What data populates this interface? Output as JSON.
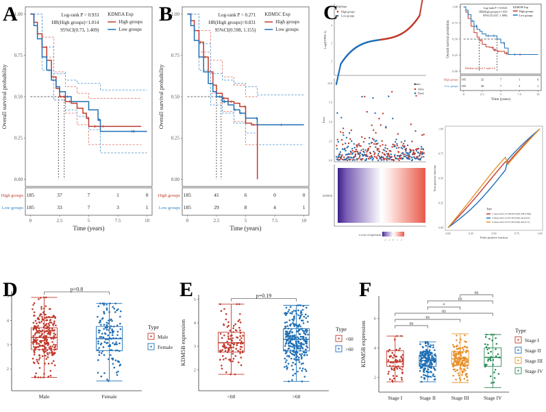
{
  "chart_data": [
    {
      "id": "A",
      "type": "line",
      "subtype": "kaplan-meier",
      "legend_title": "KDM5A Exp",
      "legend": [
        "High groups",
        "Low groups"
      ],
      "stats": [
        "Log-rank P = 0.933",
        "HR(High groups)=1.014",
        "95%CI(0.73, 1.409)"
      ],
      "xlabel": "Time (years)",
      "ylabel": "Overall survival probability",
      "xlim": [
        0,
        10
      ],
      "ylim": [
        0,
        1
      ],
      "xticks": [
        "0",
        "2.5",
        "5",
        "7.5",
        "10"
      ],
      "yticks": [
        "0.00",
        "0.25",
        "0.50",
        "0.75",
        "1.00"
      ],
      "colors": {
        "high": "#c0392b",
        "low": "#1f6fb5"
      },
      "series": [
        {
          "name": "High groups",
          "x": [
            0,
            0.3,
            0.6,
            1,
            1.4,
            1.8,
            2.2,
            2.5,
            3,
            3.5,
            4,
            4.5,
            4.8,
            5,
            6,
            7,
            8,
            9.5
          ],
          "y": [
            1,
            0.95,
            0.88,
            0.8,
            0.72,
            0.62,
            0.55,
            0.5,
            0.47,
            0.46,
            0.43,
            0.4,
            0.37,
            0.32,
            0.32,
            0.32,
            0.32,
            0.32
          ]
        },
        {
          "name": "Low groups",
          "x": [
            0,
            0.3,
            0.6,
            1,
            1.4,
            1.8,
            2.2,
            2.5,
            3,
            3.5,
            4,
            5,
            5.8,
            6,
            7,
            8,
            9,
            10
          ],
          "y": [
            1,
            0.93,
            0.85,
            0.74,
            0.66,
            0.6,
            0.56,
            0.53,
            0.5,
            0.47,
            0.47,
            0.42,
            0.36,
            0.29,
            0.29,
            0.29,
            0.29,
            0.29
          ]
        }
      ],
      "ci": [
        {
          "name": "High upper",
          "x": [
            0,
            1,
            2,
            3,
            4,
            5,
            6,
            9.5
          ],
          "y": [
            1,
            0.86,
            0.65,
            0.56,
            0.52,
            0.49,
            0.49,
            0.49
          ]
        },
        {
          "name": "High lower",
          "x": [
            0,
            1,
            2,
            3,
            4,
            5,
            6,
            9.5
          ],
          "y": [
            1,
            0.74,
            0.48,
            0.4,
            0.33,
            0.21,
            0.21,
            0.21
          ]
        },
        {
          "name": "Low upper",
          "x": [
            0,
            1,
            2,
            3,
            4,
            5,
            6,
            10
          ],
          "y": [
            1,
            0.8,
            0.64,
            0.6,
            0.58,
            0.58,
            0.54,
            0.54
          ]
        },
        {
          "name": "Low lower",
          "x": [
            0,
            1,
            2,
            3,
            4,
            5,
            6,
            10
          ],
          "y": [
            1,
            0.66,
            0.48,
            0.42,
            0.38,
            0.3,
            0.16,
            0.16
          ]
        }
      ],
      "median_lines": [
        2.4,
        2.9
      ],
      "risk_table": {
        "rows": [
          "High groups",
          "Low groups"
        ],
        "values": [
          [
            185,
            37,
            7,
            1,
            0
          ],
          [
            185,
            33,
            7,
            3,
            1
          ]
        ]
      }
    },
    {
      "id": "B",
      "type": "line",
      "subtype": "kaplan-meier",
      "legend_title": "KDM5C Exp",
      "legend": [
        "High groups",
        "Low groups"
      ],
      "stats": [
        "Log-rank P = 0.271",
        "HR(High groups)=0.831",
        "95%CI(0.598, 1.155)"
      ],
      "xlabel": "Time (years)",
      "ylabel": "Overall survival probability",
      "xlim": [
        0,
        10
      ],
      "ylim": [
        0,
        1
      ],
      "xticks": [
        "0",
        "2.5",
        "5",
        "7.5",
        "10"
      ],
      "yticks": [
        "0.00",
        "0.25",
        "0.50",
        "0.75",
        "1.00"
      ],
      "colors": {
        "high": "#c0392b",
        "low": "#1f6fb5"
      },
      "series": [
        {
          "name": "High groups",
          "x": [
            0,
            0.3,
            0.6,
            1,
            1.4,
            1.8,
            2.2,
            2.5,
            3,
            3.5,
            4,
            4.5,
            5,
            5.5,
            6,
            6.01
          ],
          "y": [
            1,
            0.96,
            0.9,
            0.83,
            0.74,
            0.65,
            0.57,
            0.52,
            0.49,
            0.47,
            0.46,
            0.44,
            0.34,
            0.33,
            0.33,
            0
          ]
        },
        {
          "name": "Low groups",
          "x": [
            0,
            0.3,
            0.6,
            1,
            1.4,
            1.8,
            2.2,
            2.5,
            3,
            3.5,
            4,
            4.5,
            5,
            6,
            7,
            8,
            9,
            10
          ],
          "y": [
            1,
            0.93,
            0.84,
            0.74,
            0.65,
            0.58,
            0.53,
            0.5,
            0.47,
            0.45,
            0.42,
            0.4,
            0.37,
            0.33,
            0.33,
            0.33,
            0.33,
            0.33
          ]
        }
      ],
      "ci": [
        {
          "name": "High upper",
          "x": [
            0,
            1,
            2,
            3,
            4,
            5,
            6
          ],
          "y": [
            1,
            0.9,
            0.72,
            0.62,
            0.57,
            0.5,
            0.5
          ]
        },
        {
          "name": "High lower",
          "x": [
            0,
            1,
            2,
            3,
            4,
            5,
            6
          ],
          "y": [
            1,
            0.77,
            0.52,
            0.41,
            0.35,
            0.21,
            0.21
          ]
        },
        {
          "name": "Low upper",
          "x": [
            0,
            1,
            2,
            3,
            4,
            5,
            6,
            10
          ],
          "y": [
            1,
            0.82,
            0.64,
            0.6,
            0.58,
            0.56,
            0.51,
            0.51
          ]
        },
        {
          "name": "Low lower",
          "x": [
            0,
            1,
            2,
            3,
            4,
            5,
            6,
            10
          ],
          "y": [
            1,
            0.66,
            0.45,
            0.4,
            0.34,
            0.28,
            0.21,
            0.21
          ]
        }
      ],
      "median_lines": [
        2.5,
        2.9
      ],
      "risk_table": {
        "rows": [
          "High groups",
          "Low groups"
        ],
        "values": [
          [
            185,
            41,
            6,
            0,
            0
          ],
          [
            185,
            29,
            8,
            4,
            1
          ]
        ]
      }
    },
    {
      "id": "C-risk",
      "type": "scatter",
      "legend_title": "RiskType",
      "legend": [
        "High groups",
        "Low groups"
      ],
      "ylabel": "Log2(TPM+1)",
      "yticks": [
        "2",
        "3",
        "4",
        "5"
      ],
      "ylim": [
        1.2,
        5.2
      ],
      "description": "Sorted KDM5B expression per patient; lower half Low groups (blue), upper half High groups (red)",
      "n_points": 370,
      "split_value": 3.2
    },
    {
      "id": "C-status",
      "type": "scatter",
      "legend_title": "Status",
      "legend": [
        "Alive",
        "Dead"
      ],
      "ylabel": "Time",
      "yticks": [
        "0.0",
        "2.5",
        "5.0",
        "7.5",
        "10.0"
      ],
      "ylim": [
        0,
        10.5
      ]
    },
    {
      "id": "C-heatmap",
      "type": "heatmap",
      "row_label": "KDM5B",
      "legend_title": "z-score of expression",
      "legend_ticks": [
        "-2",
        "-1",
        "0",
        "1",
        "2"
      ],
      "color_low": "#3b1e8c",
      "color_mid": "#ffffff",
      "color_high": "#e8594a"
    },
    {
      "id": "C-km",
      "type": "line",
      "subtype": "kaplan-meier",
      "legend_title": "KDM5B Exp",
      "legend": [
        "High groups",
        "Low groups"
      ],
      "stats": [
        "Log-rank P = 0.0343",
        "HR(High groups)=1.429",
        "95%CI(1.027, 1.989)"
      ],
      "annotation": "Median time:2.1 and 4.5",
      "xlabel": "Time (years)",
      "ylabel": "Overall survival probability",
      "xlim": [
        0,
        10
      ],
      "ylim": [
        0,
        1
      ],
      "xticks": [
        "0",
        "2.5",
        "5",
        "7.5",
        "10"
      ],
      "yticks": [
        "0.00",
        "0.25",
        "0.50",
        "0.75",
        "1.00"
      ],
      "series": [
        {
          "name": "High groups",
          "x": [
            0,
            0.3,
            0.6,
            1,
            1.4,
            1.8,
            2.1,
            2.5,
            3,
            3.5,
            4,
            4.5,
            5,
            5.5,
            6,
            10
          ],
          "y": [
            1,
            0.92,
            0.82,
            0.7,
            0.6,
            0.53,
            0.48,
            0.42,
            0.38,
            0.37,
            0.33,
            0.31,
            0.31,
            0.28,
            0.26,
            0.26
          ]
        },
        {
          "name": "Low groups",
          "x": [
            0,
            0.3,
            0.6,
            1,
            1.4,
            1.8,
            2.2,
            2.5,
            3,
            3.5,
            4,
            4.5,
            5,
            5.5,
            6,
            10
          ],
          "y": [
            1,
            0.95,
            0.88,
            0.78,
            0.7,
            0.65,
            0.62,
            0.58,
            0.55,
            0.55,
            0.55,
            0.5,
            0.44,
            0.36,
            0.26,
            0.26
          ]
        }
      ],
      "median_lines": [
        2.1,
        4.5
      ],
      "risk_table": {
        "rows": [
          "High groups",
          "Low groups"
        ],
        "values": [
          [
            185,
            32,
            7,
            1,
            0
          ],
          [
            185,
            38,
            7,
            3,
            1
          ]
        ]
      }
    },
    {
      "id": "C-roc",
      "type": "line",
      "subtype": "roc",
      "xlabel": "False positive fraction",
      "ylabel": "True positive fraction",
      "xticks": [
        "0.00",
        "0.25",
        "0.50",
        "0.75",
        "1.00"
      ],
      "yticks": [
        "0.00",
        "0.25",
        "0.50",
        "0.75",
        "1.00"
      ],
      "xlim": [
        0,
        1
      ],
      "ylim": [
        0,
        1
      ],
      "legend_title": "Type",
      "series": [
        {
          "name": "1-Years,AUC=0.538,95%CI(0.478-0.599)",
          "color": "#c0392b",
          "bend": 0.03
        },
        {
          "name": "3-Years,AUC=0.527,95%CI(0.44-0.615)",
          "color": "#1f6fb5",
          "bend": -0.06
        },
        {
          "name": "5-Years,AUC=0.577,95%CI(0.445-0.71)",
          "color": "#e8912d",
          "bend": 0.08
        }
      ]
    },
    {
      "id": "D",
      "type": "box",
      "categories": [
        "Male",
        "Female"
      ],
      "ylabel": "KDM5B expression",
      "yticks": [
        "2",
        "3",
        "4",
        "5"
      ],
      "ylim": [
        1.1,
        5.2
      ],
      "legend_title": "Type",
      "legend": [
        "Male",
        "Female"
      ],
      "colors": [
        "#c0392b",
        "#1f6fb5"
      ],
      "boxes": [
        {
          "min": 1.65,
          "q1": 2.8,
          "median": 3.3,
          "q3": 3.7,
          "max": 4.95,
          "n": 260
        },
        {
          "min": 1.5,
          "q1": 2.75,
          "median": 3.25,
          "q3": 3.75,
          "max": 4.7,
          "n": 130
        }
      ],
      "comparisons": [
        {
          "from": 0,
          "to": 1,
          "label": "p=0.8"
        }
      ]
    },
    {
      "id": "E",
      "type": "box",
      "categories": [
        "<60",
        ">60"
      ],
      "ylabel": "KDM5B expression",
      "yticks": [
        "2",
        "3",
        "4",
        "5"
      ],
      "ylim": [
        1.1,
        5.2
      ],
      "legend_title": "Type",
      "legend": [
        "<60",
        ">60"
      ],
      "colors": [
        "#c0392b",
        "#1f6fb5"
      ],
      "boxes": [
        {
          "min": 1.8,
          "q1": 2.75,
          "median": 3.15,
          "q3": 3.6,
          "max": 4.8,
          "n": 110
        },
        {
          "min": 1.5,
          "q1": 2.8,
          "median": 3.3,
          "q3": 3.75,
          "max": 4.75,
          "n": 280
        }
      ],
      "comparisons": [
        {
          "from": 0,
          "to": 1,
          "label": "p=0.19"
        }
      ]
    },
    {
      "id": "F",
      "type": "box",
      "categories": [
        "Stage I",
        "Stage II",
        "Stage III",
        "Stage IV"
      ],
      "ylabel": "KDM5B expression",
      "yticks": [
        "2",
        "4",
        "6"
      ],
      "ylim": [
        1,
        7.5
      ],
      "legend_title": "Type",
      "legend": [
        "Stage I",
        "Stage II",
        "Stage III",
        "Stage IV"
      ],
      "colors": [
        "#c0392b",
        "#1f6fb5",
        "#e8912d",
        "#2e8b57"
      ],
      "boxes": [
        {
          "min": 1.7,
          "q1": 2.75,
          "median": 3.05,
          "q3": 3.8,
          "max": 4.8,
          "n": 60
        },
        {
          "min": 1.7,
          "q1": 2.75,
          "median": 3.15,
          "q3": 3.5,
          "max": 4.4,
          "n": 170
        },
        {
          "min": 1.65,
          "q1": 2.85,
          "median": 3.25,
          "q3": 3.75,
          "max": 4.95,
          "n": 160
        },
        {
          "min": 1.3,
          "q1": 2.75,
          "median": 3.35,
          "q3": 4.0,
          "max": 4.9,
          "n": 40
        }
      ],
      "comparisons": [
        {
          "from": 0,
          "to": 1,
          "label": "ns"
        },
        {
          "from": 0,
          "to": 2,
          "label": "ns"
        },
        {
          "from": 0,
          "to": 3,
          "label": "ns"
        },
        {
          "from": 1,
          "to": 2,
          "label": "*"
        },
        {
          "from": 1,
          "to": 3,
          "label": "ns"
        },
        {
          "from": 2,
          "to": 3,
          "label": "ns"
        }
      ]
    }
  ],
  "panels": {
    "A": "A",
    "B": "B",
    "C": "C",
    "D": "D",
    "E": "E",
    "F": "F"
  }
}
